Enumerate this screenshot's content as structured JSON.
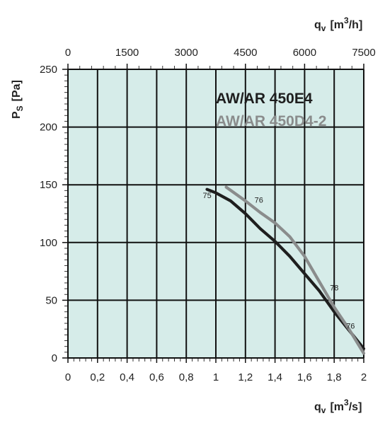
{
  "chart_data": {
    "type": "line",
    "x_bottom": {
      "label_main": "q",
      "label_sub": "v",
      "label_unit": "[m",
      "label_sup": "3",
      "label_unit_end": "/s]",
      "range": [
        0,
        2
      ],
      "ticks": [
        "0",
        "0,2",
        "0,4",
        "0,6",
        "0,8",
        "1",
        "1,2",
        "1,4",
        "1,6",
        "1,8",
        "2"
      ]
    },
    "x_top": {
      "label_main": "q",
      "label_sub": "v",
      "label_unit": "[m",
      "label_sup": "3",
      "label_unit_end": "/h]",
      "range": [
        0,
        7500
      ],
      "ticks": [
        "0",
        "1500",
        "3000",
        "4500",
        "6000",
        "7500"
      ]
    },
    "y": {
      "label_main": "P",
      "label_sub": "S",
      "label_unit": "[Pa]",
      "range": [
        0,
        250
      ],
      "ticks": [
        "0",
        "50",
        "100",
        "150",
        "200",
        "250"
      ]
    },
    "grid": true,
    "background": "#d6ece9",
    "series": [
      {
        "name": "AW/AR 450E4",
        "color": "#1e1e1e",
        "points": [
          [
            0.94,
            146
          ],
          [
            1.0,
            143
          ],
          [
            1.1,
            136
          ],
          [
            1.2,
            125
          ],
          [
            1.3,
            112
          ],
          [
            1.4,
            101
          ],
          [
            1.5,
            88
          ],
          [
            1.6,
            73
          ],
          [
            1.7,
            58
          ],
          [
            1.8,
            40
          ],
          [
            1.9,
            24
          ],
          [
            2.0,
            8
          ]
        ],
        "labels": [
          {
            "text": "75",
            "x": 0.94,
            "y": 141
          },
          {
            "text": "78",
            "x": 1.8,
            "y": 61
          }
        ]
      },
      {
        "name": "AW/AR 450D4-2",
        "color": "#8a8c8c",
        "points": [
          [
            1.07,
            148
          ],
          [
            1.2,
            136
          ],
          [
            1.3,
            126
          ],
          [
            1.4,
            117
          ],
          [
            1.5,
            105
          ],
          [
            1.6,
            88
          ],
          [
            1.7,
            66
          ],
          [
            1.8,
            44
          ],
          [
            1.9,
            25
          ],
          [
            2.0,
            4
          ]
        ],
        "labels": [
          {
            "text": "76",
            "x": 1.29,
            "y": 137
          },
          {
            "text": "76",
            "x": 1.91,
            "y": 28
          }
        ]
      }
    ]
  }
}
